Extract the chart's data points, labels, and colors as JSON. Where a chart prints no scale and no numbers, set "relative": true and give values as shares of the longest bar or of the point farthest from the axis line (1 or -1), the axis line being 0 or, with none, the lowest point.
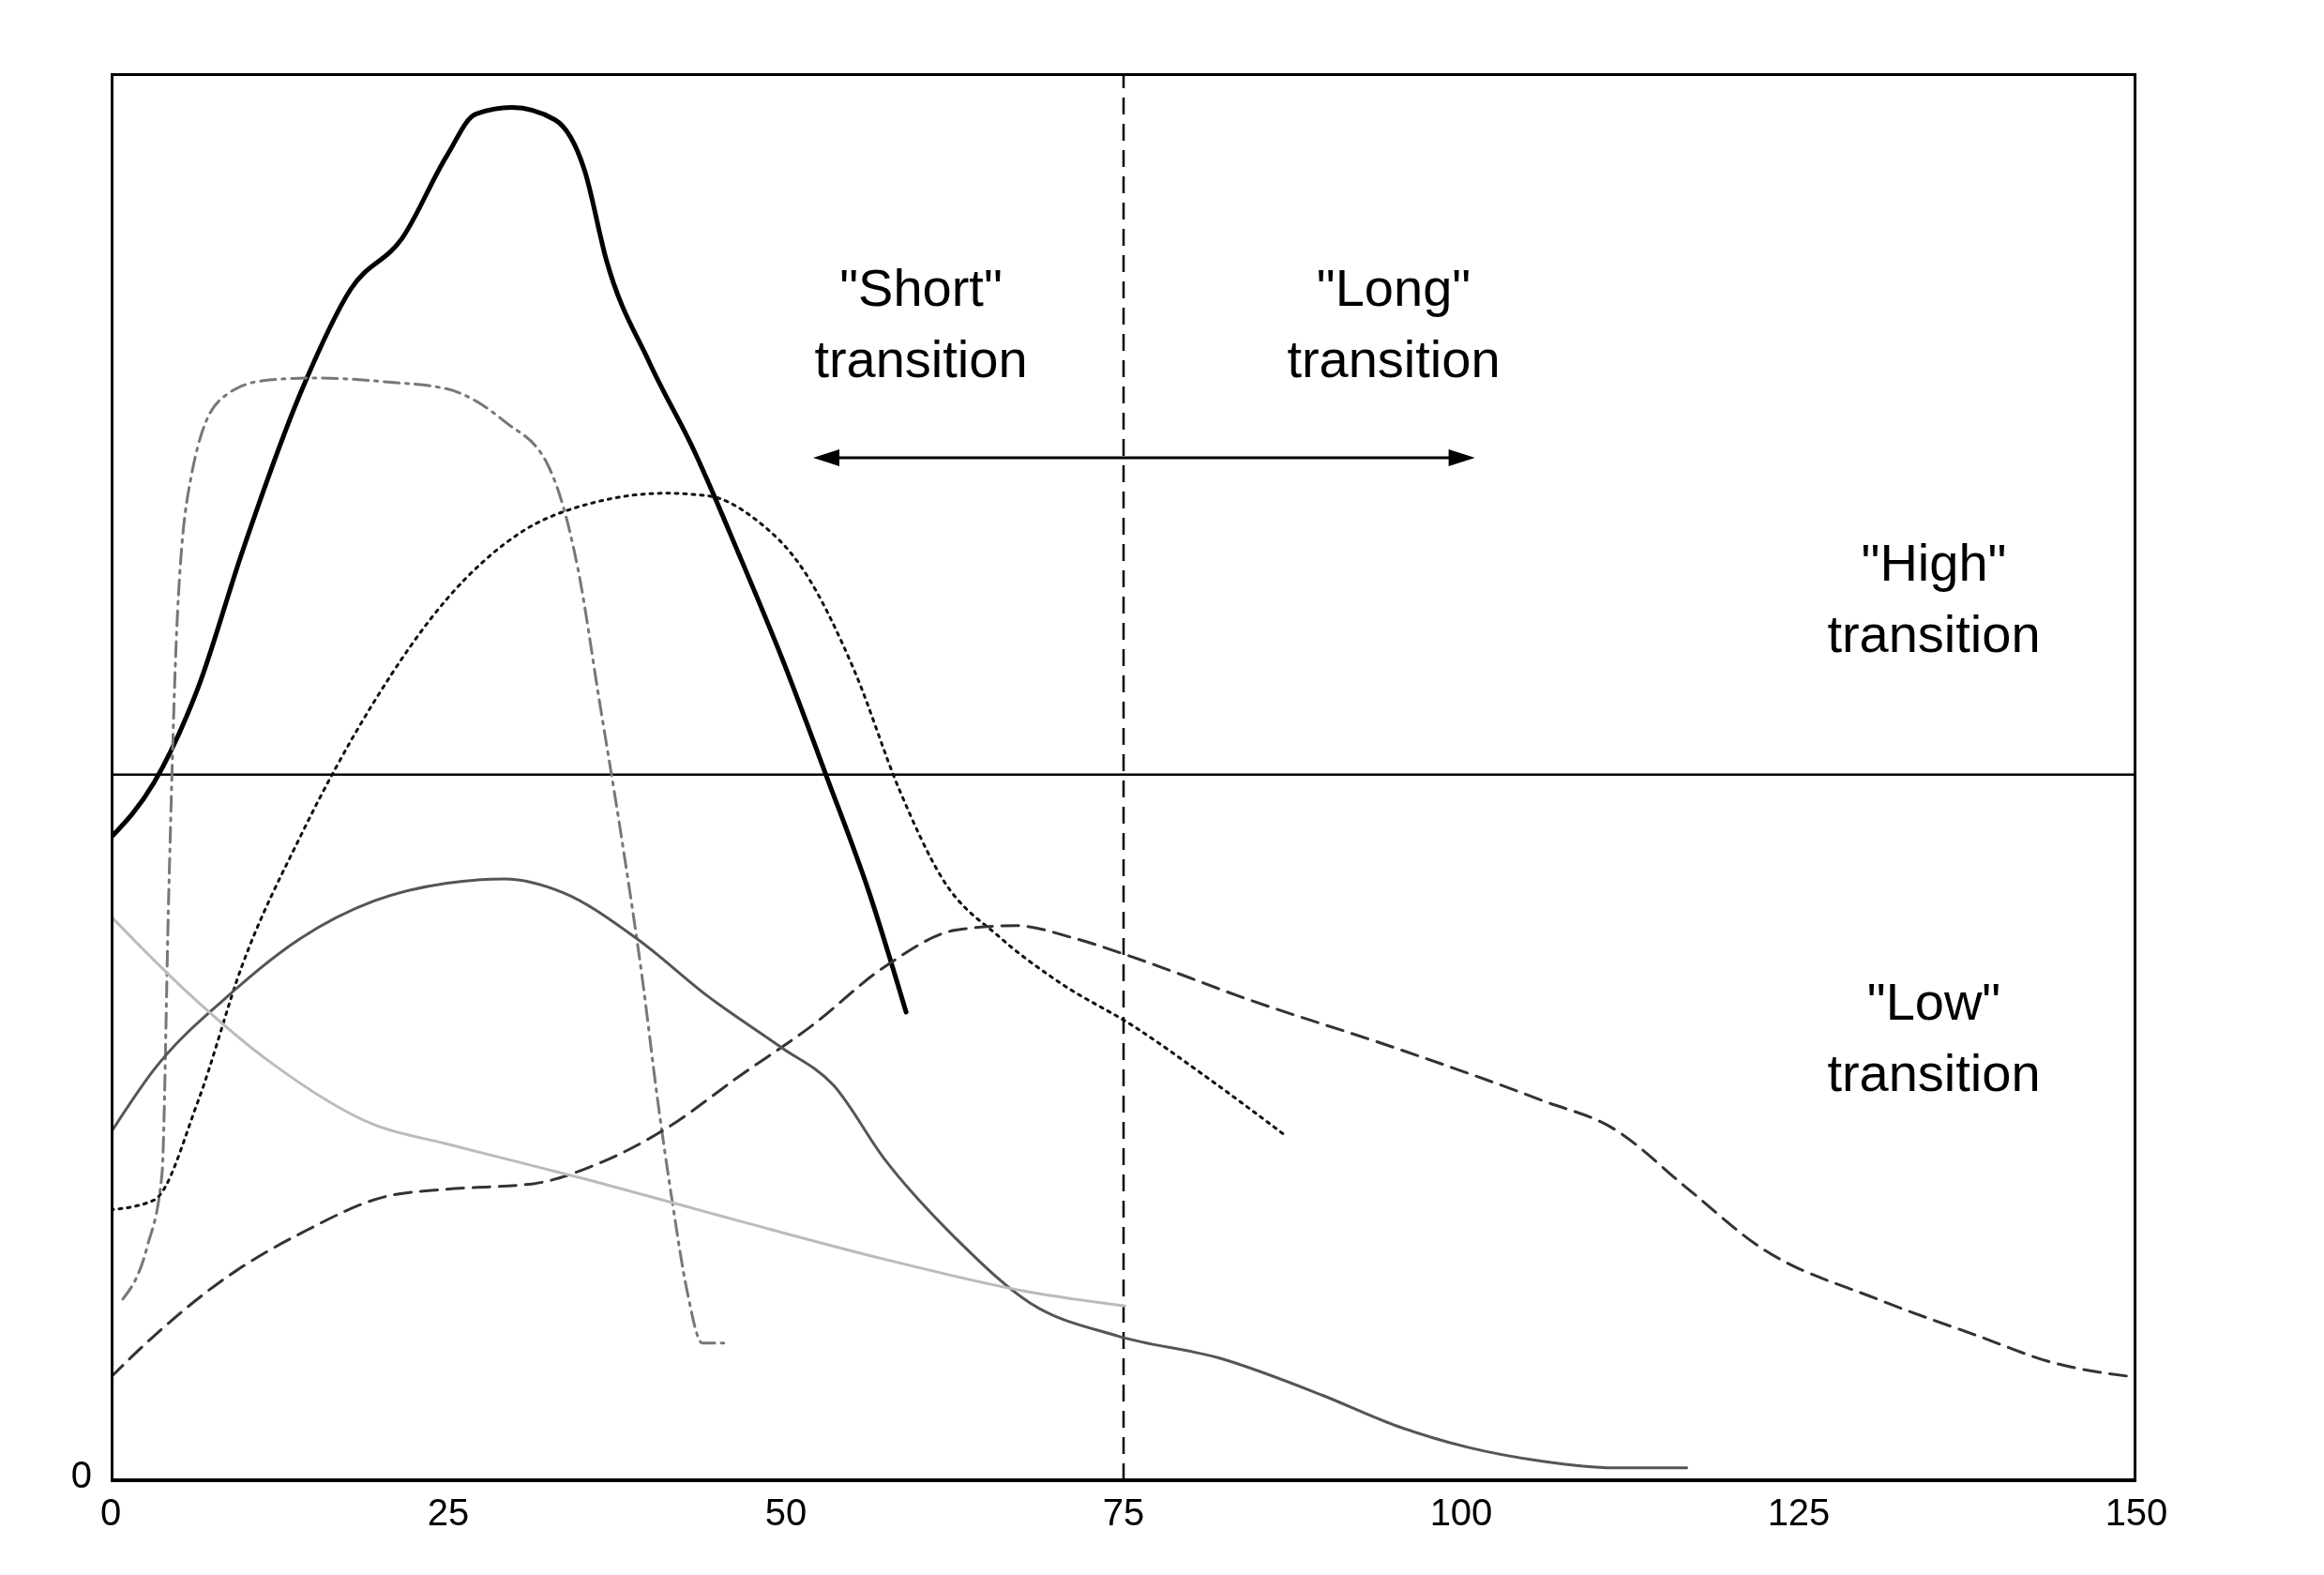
{
  "chart_data": {
    "type": "line",
    "relative": true,
    "xlim": [
      0,
      150
    ],
    "xticks": [
      0,
      25,
      50,
      75,
      100,
      125,
      150
    ],
    "marker": "none",
    "series": [
      {
        "color": "#000000",
        "line_style": "solid",
        "x": [
          0,
          3.2,
          6.5,
          9.7,
          14.1,
          17.8,
          21.6,
          24.9,
          27.0,
          29.7,
          32.9,
          35.1,
          36.7,
          39.9,
          43.2,
          46.5,
          49.7,
          53.0,
          56.2,
          58.9
        ],
        "values": [
          0.468,
          0.508,
          0.578,
          0.675,
          0.793,
          0.868,
          0.905,
          0.965,
          0.995,
          1,
          0.991,
          0.954,
          0.889,
          0.814,
          0.75,
          0.675,
          0.599,
          0.513,
          0.427,
          0.341
        ]
      },
      {
        "color": "#777777",
        "line_style": "dashdot",
        "x": [
          0.9,
          2.7,
          3.8,
          4.3,
          4.9,
          5.9,
          8.1,
          11.3,
          15.1,
          20.5,
          24.9,
          29.2,
          32.4,
          34.6,
          36.2,
          37.8,
          39.4,
          40.5,
          41.6,
          42.7,
          43.8,
          45.4
        ],
        "values": [
          0.132,
          0.17,
          0.223,
          0.427,
          0.621,
          0.728,
          0.787,
          0.801,
          0.803,
          0.8,
          0.795,
          0.771,
          0.739,
          0.664,
          0.567,
          0.47,
          0.363,
          0.277,
          0.202,
          0.137,
          0.1,
          0.1
        ]
      },
      {
        "color": "#111111",
        "line_style": "dotted",
        "x": [
          0,
          3.2,
          6.5,
          9.7,
          14.1,
          19.5,
          24.9,
          30.3,
          35.7,
          41.1,
          44.3,
          47.6,
          51.3,
          55.1,
          58.4,
          61.6,
          65.9,
          70.2,
          75.7,
          81.1,
          87.0
        ],
        "values": [
          0.197,
          0.204,
          0.277,
          0.374,
          0.47,
          0.567,
          0.642,
          0.69,
          0.712,
          0.719,
          0.717,
          0.701,
          0.663,
          0.589,
          0.503,
          0.438,
          0.395,
          0.363,
          0.331,
          0.294,
          0.251
        ]
      },
      {
        "color": "#333333",
        "line_style": "dashed",
        "x": [
          0,
          3.2,
          8.6,
          14.1,
          20.5,
          24.9,
          31.3,
          35.7,
          41.1,
          46.5,
          51.9,
          57.3,
          62.7,
          67.0,
          71.3,
          75.7,
          84.3,
          95.1,
          105.9,
          111.3,
          116.7,
          122.1,
          130.8,
          138.3,
          143.7,
          150
        ],
        "values": [
          0.075,
          0.105,
          0.148,
          0.18,
          0.207,
          0.212,
          0.216,
          0.229,
          0.256,
          0.294,
          0.331,
          0.374,
          0.401,
          0.404,
          0.395,
          0.381,
          0.35,
          0.315,
          0.277,
          0.256,
          0.213,
          0.17,
          0.132,
          0.105,
          0.086,
          0.075
        ]
      },
      {
        "color": "#555555",
        "line_style": "solid",
        "x": [
          0,
          3.2,
          8.6,
          14.1,
          19.5,
          24.9,
          29.2,
          33.5,
          38.9,
          44.3,
          49.7,
          53.5,
          57.3,
          62.7,
          68.1,
          74.6,
          82.1,
          89.7,
          95.1,
          100.5,
          105.9,
          111.3,
          116.7
        ],
        "values": [
          0.253,
          0.299,
          0.352,
          0.395,
          0.422,
          0.435,
          0.438,
          0.428,
          0.395,
          0.352,
          0.315,
          0.288,
          0.234,
          0.175,
          0.129,
          0.105,
          0.089,
          0.062,
          0.04,
          0.024,
          0.014,
          0.009,
          0.009
        ]
      },
      {
        "color": "#bbbbbb",
        "line_style": "solid",
        "x": [
          0,
          5.4,
          11.9,
          19.5,
          24.9,
          35.7,
          46.5,
          57.3,
          68.1,
          75.1
        ],
        "values": [
          0.411,
          0.358,
          0.304,
          0.259,
          0.245,
          0.218,
          0.189,
          0.161,
          0.137,
          0.127
        ]
      }
    ],
    "ref_lines": [
      {
        "axis": "x",
        "value": 75,
        "color": "#000000",
        "line_style": "dashed"
      },
      {
        "axis": "y",
        "value": 0.514,
        "color": "#000000",
        "line_style": "solid"
      }
    ],
    "annotations": [
      "\"Short\"\ntransition",
      "\"Long\"\ntransition",
      "\"High\"\ntransition",
      "\"Low\"\ntransition",
      "0"
    ]
  }
}
